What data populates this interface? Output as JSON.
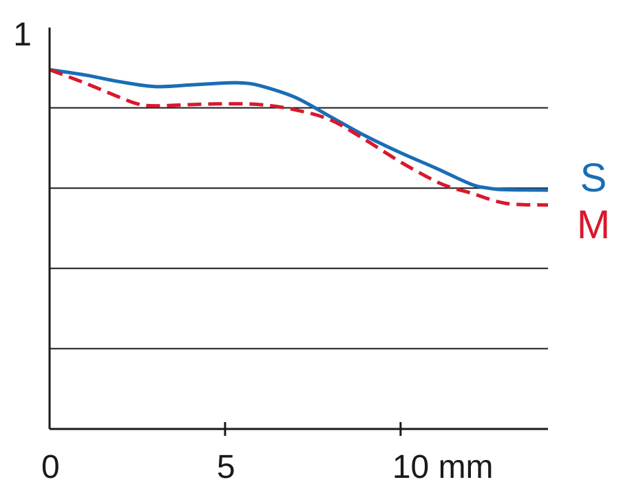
{
  "chart_data": {
    "type": "line",
    "title": "",
    "xlabel": "",
    "ylabel": "",
    "xlim": [
      0,
      14.2
    ],
    "ylim": [
      0,
      1
    ],
    "grid": "horizontal",
    "y_gridlines": [
      0.2,
      0.4,
      0.6,
      0.8
    ],
    "x_ticks": [
      {
        "value": 0,
        "label": "0"
      },
      {
        "value": 5,
        "label": "5"
      },
      {
        "value": 10,
        "label": "10 mm"
      }
    ],
    "y_ticks": [
      {
        "value": 1,
        "label": "1"
      }
    ],
    "legend_placement": "right",
    "series": [
      {
        "name": "S",
        "color": "#1a6db5",
        "style": "solid",
        "x": [
          0,
          1,
          2,
          3,
          4,
          5,
          5.5,
          6,
          7,
          8,
          9,
          10,
          11,
          12,
          12.5,
          13,
          14.2
        ],
        "y": [
          0.895,
          0.882,
          0.865,
          0.853,
          0.857,
          0.862,
          0.862,
          0.855,
          0.826,
          0.778,
          0.73,
          0.688,
          0.65,
          0.61,
          0.6,
          0.596,
          0.595
        ]
      },
      {
        "name": "M",
        "color": "#d9182d",
        "style": "dashed",
        "x": [
          0,
          1,
          2,
          2.5,
          3,
          4,
          5,
          6,
          7,
          8,
          9,
          10,
          11,
          11.5,
          12,
          13,
          14.2
        ],
        "y": [
          0.895,
          0.862,
          0.826,
          0.81,
          0.805,
          0.808,
          0.81,
          0.808,
          0.795,
          0.77,
          0.72,
          0.665,
          0.617,
          0.6,
          0.588,
          0.562,
          0.558
        ]
      }
    ]
  }
}
